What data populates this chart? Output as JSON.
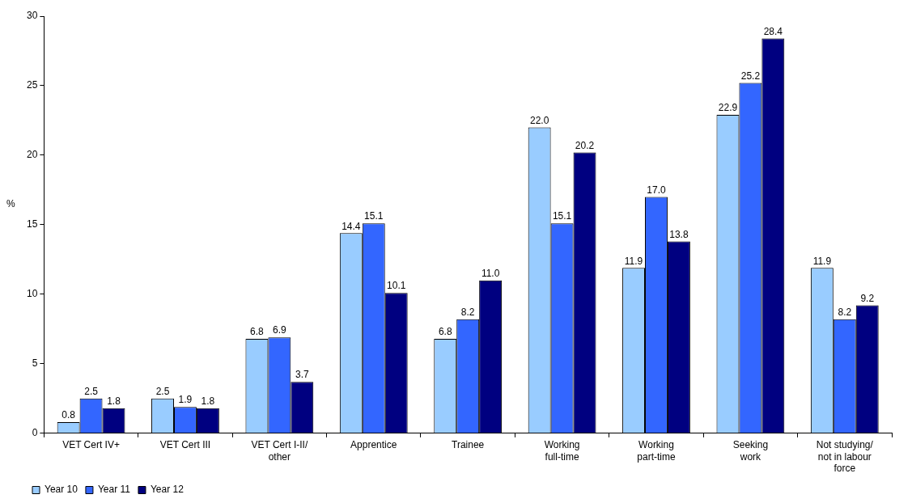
{
  "chart_data": {
    "type": "bar",
    "ylabel": "%",
    "categories": [
      "VET Cert IV+",
      "VET Cert III",
      "VET Cert I-II/\nother",
      "Apprentice",
      "Trainee",
      "Working\nfull-time",
      "Working\npart-time",
      "Seeking\nwork",
      "Not studying/\nnot in labour\nforce"
    ],
    "series": [
      {
        "name": "Year 10",
        "color": "#99ccff",
        "values": [
          0.8,
          2.5,
          6.8,
          14.4,
          6.8,
          22.0,
          11.9,
          22.9,
          11.9
        ],
        "value_labels": [
          "0.8",
          "2.5",
          "6.8",
          "14.4",
          "6.8",
          "22.0",
          "11.9",
          "22.9",
          "11.9"
        ]
      },
      {
        "name": "Year 11",
        "color": "#3366ff",
        "values": [
          2.5,
          1.9,
          6.9,
          15.1,
          8.2,
          15.1,
          17.0,
          25.2,
          8.2
        ],
        "value_labels": [
          "2.5",
          "1.9",
          "6.9",
          "15.1",
          "8.2",
          "15.1",
          "17.0",
          "25.2",
          "8.2"
        ]
      },
      {
        "name": "Year 12",
        "color": "#000080",
        "values": [
          1.8,
          1.8,
          3.7,
          10.1,
          11.0,
          20.2,
          13.8,
          28.4,
          9.2
        ],
        "value_labels": [
          "1.8",
          "1.8",
          "3.7",
          "10.1",
          "11.0",
          "20.2",
          "13.8",
          "28.4",
          "9.2"
        ]
      }
    ],
    "ylim": [
      0,
      30
    ],
    "yticks": [
      0,
      5,
      10,
      15,
      20,
      25,
      30
    ],
    "grid": false,
    "legend": "bottom left"
  }
}
